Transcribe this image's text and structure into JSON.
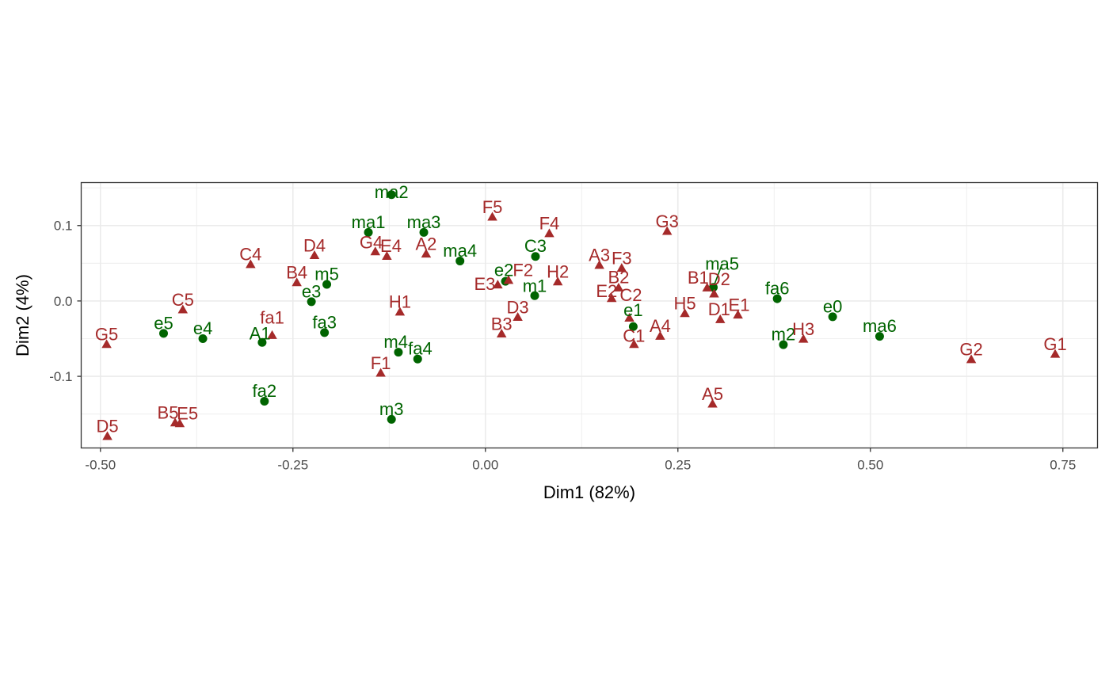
{
  "chart_data": {
    "type": "scatter",
    "title": "",
    "xlabel": "Dim1 (82%)",
    "ylabel": "Dim2 (4%)",
    "xlim": [
      -0.525,
      0.795
    ],
    "ylim": [
      -0.195,
      0.157
    ],
    "x_ticks": [
      {
        "value": -0.5,
        "label": "-0.50"
      },
      {
        "value": -0.25,
        "label": "-0.25"
      },
      {
        "value": 0.0,
        "label": "0.00"
      },
      {
        "value": 0.25,
        "label": "0.25"
      },
      {
        "value": 0.5,
        "label": "0.50"
      },
      {
        "value": 0.75,
        "label": "0.75"
      }
    ],
    "y_ticks": [
      {
        "value": -0.1,
        "label": "-0.1"
      },
      {
        "value": 0.0,
        "label": "0.0"
      },
      {
        "value": 0.1,
        "label": "0.1"
      }
    ],
    "grid": true,
    "legend": "none",
    "series": [
      {
        "shape": "circle",
        "color": "#006400",
        "points": [
          {
            "label": "ma2",
            "x": -0.122,
            "y": 0.141
          },
          {
            "label": "ma1",
            "x": -0.152,
            "y": 0.091
          },
          {
            "label": "ma3",
            "x": -0.08,
            "y": 0.091
          },
          {
            "label": "ma4",
            "x": -0.033,
            "y": 0.053
          },
          {
            "label": "C3",
            "x": 0.065,
            "y": 0.059
          },
          {
            "label": "m5",
            "x": -0.206,
            "y": 0.022
          },
          {
            "label": "e2",
            "x": 0.026,
            "y": 0.026
          },
          {
            "label": "m1",
            "x": 0.064,
            "y": 0.007
          },
          {
            "label": "e3",
            "x": -0.226,
            "y": -0.001
          },
          {
            "label": "e5",
            "x": -0.418,
            "y": -0.043
          },
          {
            "label": "e4",
            "x": -0.367,
            "y": -0.05
          },
          {
            "label": "A1",
            "x": -0.29,
            "y": -0.055
          },
          {
            "label": "fa3",
            "x": -0.209,
            "y": -0.042
          },
          {
            "label": "m4",
            "x": -0.113,
            "y": -0.068
          },
          {
            "label": "fa4",
            "x": -0.088,
            "y": -0.077
          },
          {
            "label": "fa2",
            "x": -0.287,
            "y": -0.133
          },
          {
            "label": "m3",
            "x": -0.122,
            "y": -0.157
          },
          {
            "label": "e1",
            "x": 0.192,
            "y": -0.034
          },
          {
            "label": "ma5",
            "x": 0.296,
            "y": 0.018
          },
          {
            "label": "fa6",
            "x": 0.379,
            "y": 0.003
          },
          {
            "label": "e0",
            "x": 0.451,
            "y": -0.021
          },
          {
            "label": "m2",
            "x": 0.387,
            "y": -0.058
          },
          {
            "label": "ma6",
            "x": 0.512,
            "y": -0.047
          }
        ]
      },
      {
        "shape": "triangle",
        "color": "#A52A2A",
        "points": [
          {
            "label": "F5",
            "x": 0.009,
            "y": 0.111
          },
          {
            "label": "F4",
            "x": 0.083,
            "y": 0.089
          },
          {
            "label": "G3",
            "x": 0.236,
            "y": 0.092
          },
          {
            "label": "A2",
            "x": -0.077,
            "y": 0.062
          },
          {
            "label": "G4",
            "x": -0.143,
            "y": 0.065
          },
          {
            "label": "E4",
            "x": -0.128,
            "y": 0.059
          },
          {
            "label": "D4",
            "x": -0.222,
            "y": 0.06
          },
          {
            "label": "C4",
            "x": -0.305,
            "y": 0.048
          },
          {
            "label": "A3",
            "x": 0.148,
            "y": 0.047
          },
          {
            "label": "F3",
            "x": 0.177,
            "y": 0.043
          },
          {
            "label": "B1",
            "x": 0.288,
            "y": 0.017
          },
          {
            "label": "D2",
            "x": 0.297,
            "y": 0.009
          },
          {
            "label": "B4",
            "x": -0.245,
            "y": 0.024
          },
          {
            "label": "F2",
            "x": 0.03,
            "y": 0.027
          },
          {
            "label": "E3",
            "x": 0.016,
            "y": 0.021
          },
          {
            "label": "H2",
            "x": 0.094,
            "y": 0.025
          },
          {
            "label": "B2",
            "x": 0.173,
            "y": 0.017
          },
          {
            "label": "C5",
            "x": -0.393,
            "y": -0.012
          },
          {
            "label": "H1",
            "x": -0.111,
            "y": -0.015
          },
          {
            "label": "D3",
            "x": 0.042,
            "y": -0.022
          },
          {
            "label": "E2",
            "x": 0.164,
            "y": 0.003
          },
          {
            "label": "H5",
            "x": 0.259,
            "y": -0.017
          },
          {
            "label": "E1",
            "x": 0.328,
            "y": -0.019
          },
          {
            "label": "D1",
            "x": 0.305,
            "y": -0.025
          },
          {
            "label": "H3",
            "x": 0.413,
            "y": -0.051
          },
          {
            "label": "C2",
            "x": 0.187,
            "y": -0.023
          },
          {
            "label": "C1",
            "x": 0.193,
            "y": -0.058
          },
          {
            "label": "A4",
            "x": 0.227,
            "y": -0.047
          },
          {
            "label": "B3",
            "x": 0.021,
            "y": -0.044
          },
          {
            "label": "fa1",
            "x": -0.277,
            "y": -0.046
          },
          {
            "label": "F1",
            "x": -0.136,
            "y": -0.096
          },
          {
            "label": "G5",
            "x": -0.492,
            "y": -0.058
          },
          {
            "label": "G2",
            "x": 0.631,
            "y": -0.078
          },
          {
            "label": "G1",
            "x": 0.74,
            "y": -0.071
          },
          {
            "label": "A5",
            "x": 0.295,
            "y": -0.137
          },
          {
            "label": "B5",
            "x": -0.403,
            "y": -0.162
          },
          {
            "label": "E5",
            "x": -0.397,
            "y": -0.163
          },
          {
            "label": "D5",
            "x": -0.491,
            "y": -0.18
          }
        ]
      }
    ]
  }
}
